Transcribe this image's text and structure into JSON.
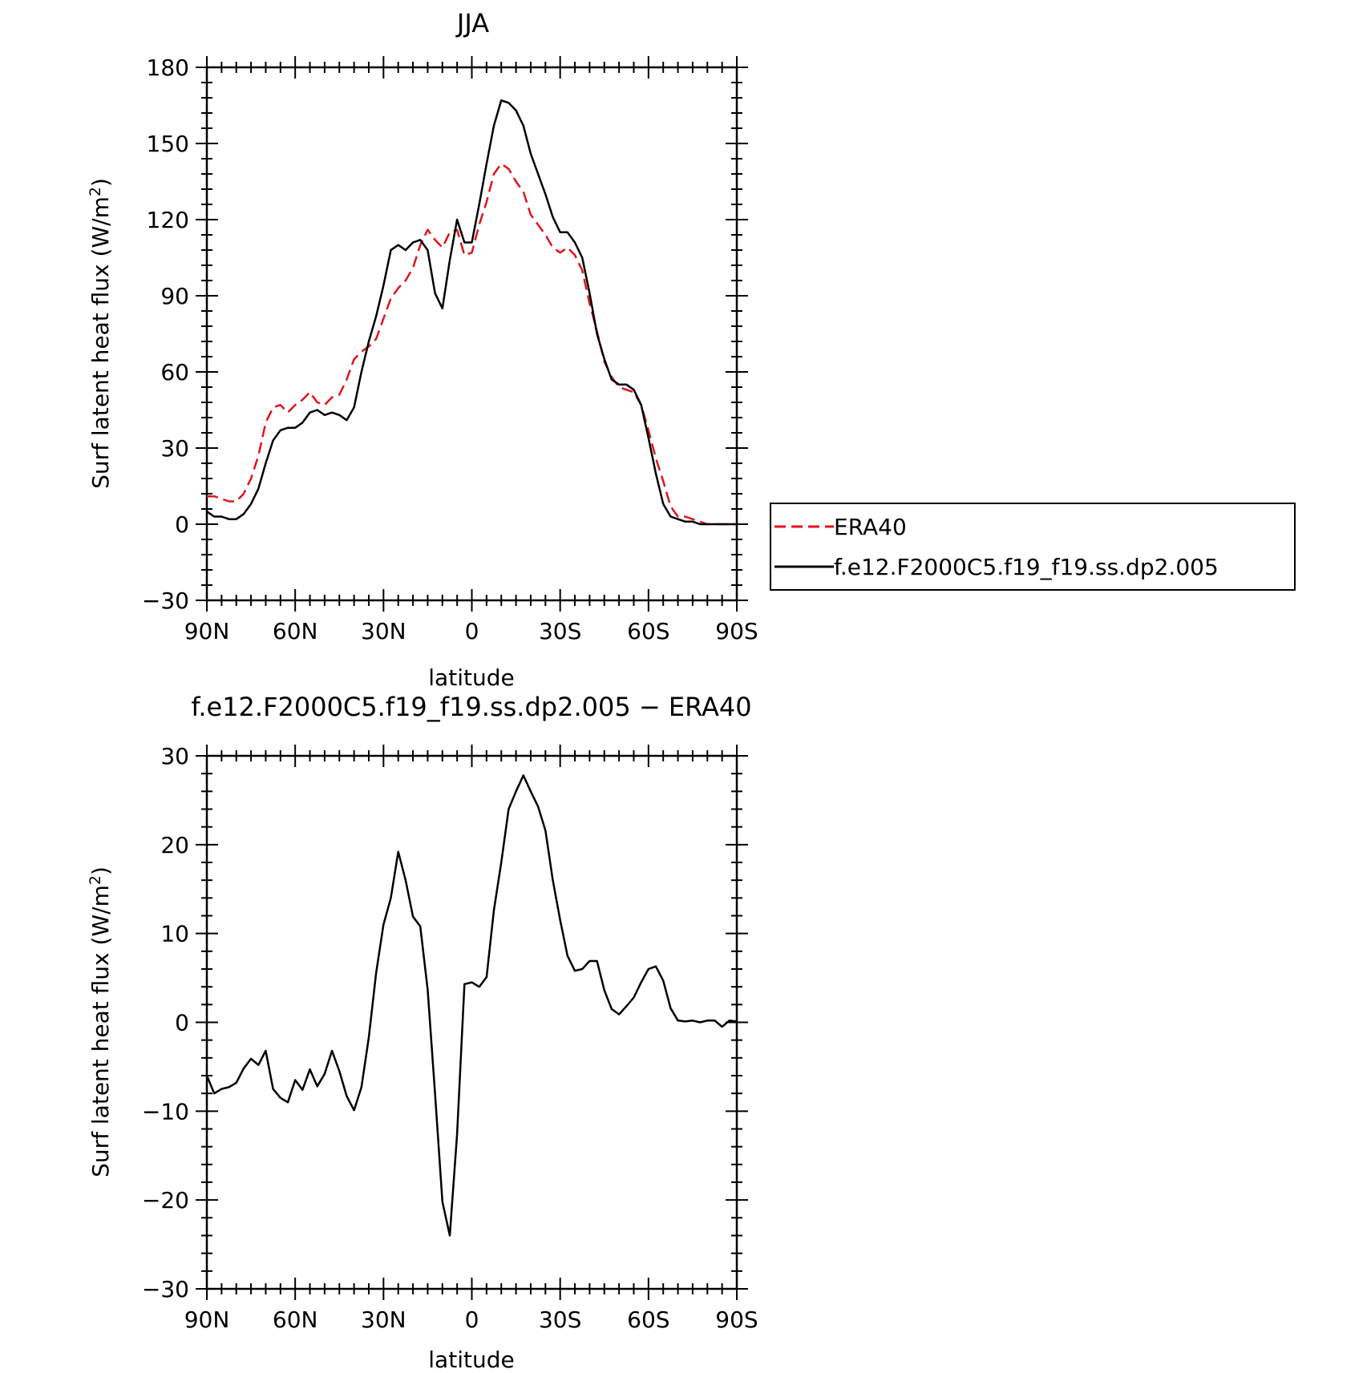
{
  "colors": {
    "era40": "#e0141b",
    "model": "#000000",
    "axis": "#000000",
    "background": "#ffffff"
  },
  "chart_data": [
    {
      "type": "line",
      "title": "JJA",
      "xlabel": "latitude",
      "ylabel_main": "Surf latent heat flux (W/m",
      "ylabel_sup": "2",
      "ylabel_close": ")",
      "xlim": [
        90,
        -90
      ],
      "ylim": [
        -30,
        180
      ],
      "xtick_values": [
        90,
        60,
        30,
        0,
        -30,
        -60,
        -90
      ],
      "xtick_labels": [
        "90N",
        "60N",
        "30N",
        "0",
        "30S",
        "60S",
        "90S"
      ],
      "ytick_values": [
        180,
        150,
        120,
        90,
        60,
        30,
        0,
        -30
      ],
      "ytick_labels": [
        "180",
        "150",
        "120",
        "90",
        "60",
        "30",
        "0",
        "−30"
      ],
      "grid": false,
      "legend_position": "right",
      "series": [
        {
          "name": "ERA40",
          "style": "dashed",
          "x": [
            90,
            87.5,
            85,
            82.5,
            80,
            77.5,
            75,
            72.5,
            70,
            67.5,
            65,
            62.5,
            60,
            57.5,
            55,
            52.5,
            50,
            47.5,
            45,
            42.5,
            40,
            37.5,
            35,
            32.5,
            30,
            27.5,
            25,
            22.5,
            20,
            17.5,
            15,
            12.5,
            10,
            7.5,
            5,
            2.5,
            0,
            -2.5,
            -5,
            -7.5,
            -10,
            -12.5,
            -15,
            -17.5,
            -20,
            -22.5,
            -25,
            -27.5,
            -30,
            -32.5,
            -35,
            -37.5,
            -40,
            -42.5,
            -45,
            -47.5,
            -50,
            -52.5,
            -55,
            -57.5,
            -60,
            -62.5,
            -65,
            -67.5,
            -70,
            -72.5,
            -75,
            -77.5,
            -80,
            -82.5,
            -85,
            -87.5,
            -90
          ],
          "y": [
            11,
            11,
            10,
            9,
            9,
            12,
            18,
            27,
            40,
            46,
            47,
            44,
            47,
            49,
            52,
            48,
            47,
            50,
            51,
            57,
            65,
            68,
            70,
            73,
            81,
            89,
            93,
            96,
            101,
            110,
            116,
            112,
            109,
            115,
            116,
            106,
            107,
            118,
            127,
            138,
            142,
            140,
            135,
            131,
            122,
            118,
            114,
            109,
            107,
            109,
            106,
            100,
            87,
            76,
            64,
            58,
            54,
            53,
            52,
            47,
            37,
            26,
            17,
            7,
            3,
            3,
            2,
            1,
            0,
            0,
            0,
            0,
            0
          ]
        },
        {
          "name": "f.e12.F2000C5.f19_f19.ss.dp2.005",
          "style": "solid",
          "x": [
            90,
            87.5,
            85,
            82.5,
            80,
            77.5,
            75,
            72.5,
            70,
            67.5,
            65,
            62.5,
            60,
            57.5,
            55,
            52.5,
            50,
            47.5,
            45,
            42.5,
            40,
            37.5,
            35,
            32.5,
            30,
            27.5,
            25,
            22.5,
            20,
            17.5,
            15,
            12.5,
            10,
            7.5,
            5,
            2.5,
            0,
            -2.5,
            -5,
            -7.5,
            -10,
            -12.5,
            -15,
            -17.5,
            -20,
            -22.5,
            -25,
            -27.5,
            -30,
            -32.5,
            -35,
            -37.5,
            -40,
            -42.5,
            -45,
            -47.5,
            -50,
            -52.5,
            -55,
            -57.5,
            -60,
            -62.5,
            -65,
            -67.5,
            -70,
            -72.5,
            -75,
            -77.5,
            -80,
            -82.5,
            -85,
            -87.5,
            -90
          ],
          "y": [
            5,
            3,
            3,
            2,
            2,
            4,
            8,
            14,
            24,
            33,
            37,
            38,
            38,
            40,
            44,
            45,
            43,
            44,
            43,
            41,
            46,
            60,
            72,
            82,
            94,
            108,
            110,
            108,
            111,
            112,
            108,
            91,
            85,
            104,
            120,
            111,
            111,
            126,
            142,
            157,
            167,
            166,
            163,
            157,
            146,
            138,
            130,
            121,
            115,
            115,
            111,
            105,
            91,
            75,
            65,
            57,
            55,
            55,
            53,
            47,
            34,
            20,
            8,
            3,
            2,
            1,
            1,
            0,
            0,
            0,
            0,
            0,
            0
          ]
        }
      ]
    },
    {
      "type": "line",
      "title": "f.e12.F2000C5.f19_f19.ss.dp2.005 − ERA40",
      "xlabel": "latitude",
      "ylabel_main": "Surf latent heat flux (W/m",
      "ylabel_sup": "2",
      "ylabel_close": ")",
      "xlim": [
        90,
        -90
      ],
      "ylim": [
        -30,
        30
      ],
      "xtick_values": [
        90,
        60,
        30,
        0,
        -30,
        -60,
        -90
      ],
      "xtick_labels": [
        "90N",
        "60N",
        "30N",
        "0",
        "30S",
        "60S",
        "90S"
      ],
      "ytick_values": [
        30,
        20,
        10,
        0,
        -10,
        -20,
        -30
      ],
      "ytick_labels": [
        "30",
        "20",
        "10",
        "0",
        "−10",
        "−20",
        "−30"
      ],
      "grid": false,
      "series": [
        {
          "style": "solid",
          "x": [
            90,
            87.5,
            85,
            82.5,
            80,
            77.5,
            75,
            72.5,
            70,
            67.5,
            65,
            62.5,
            60,
            57.5,
            55,
            52.5,
            50,
            47.5,
            45,
            42.5,
            40,
            37.5,
            35,
            32.5,
            30,
            27.5,
            25,
            22.5,
            20,
            17.5,
            15,
            12.5,
            10,
            7.5,
            5,
            2.5,
            0,
            -2.5,
            -5,
            -7.5,
            -10,
            -12.5,
            -15,
            -17.5,
            -20,
            -22.5,
            -25,
            -27.5,
            -30,
            -32.5,
            -35,
            -37.5,
            -40,
            -42.5,
            -45,
            -47.5,
            -50,
            -52.5,
            -55,
            -57.5,
            -60,
            -62.5,
            -65,
            -67.5,
            -70,
            -72.5,
            -75,
            -77.5,
            -80,
            -82.5,
            -85,
            -87.5,
            -90
          ],
          "y": [
            -6,
            -8,
            -7.5,
            -7.3,
            -6.8,
            -5.2,
            -4.1,
            -4.8,
            -3.2,
            -7.5,
            -8.5,
            -9,
            -6.5,
            -7.6,
            -5.3,
            -7.2,
            -5.8,
            -3.2,
            -5.5,
            -8.3,
            -9.9,
            -7.3,
            -1.7,
            5.6,
            11,
            14,
            19.2,
            16,
            11.9,
            10.8,
            3.7,
            -8,
            -20.2,
            -24,
            -12.6,
            4.3,
            4.5,
            4,
            5.1,
            12.6,
            18,
            24,
            26,
            27.8,
            26,
            24.3,
            21.6,
            16,
            11.5,
            7.5,
            5.8,
            6,
            6.9,
            6.9,
            3.6,
            1.5,
            0.9,
            1.8,
            2.8,
            4.5,
            6,
            6.3,
            4.7,
            1.6,
            0.2,
            0.1,
            0.2,
            0,
            0.2,
            0.2,
            -0.5,
            0.2,
            0.1
          ]
        }
      ]
    }
  ]
}
